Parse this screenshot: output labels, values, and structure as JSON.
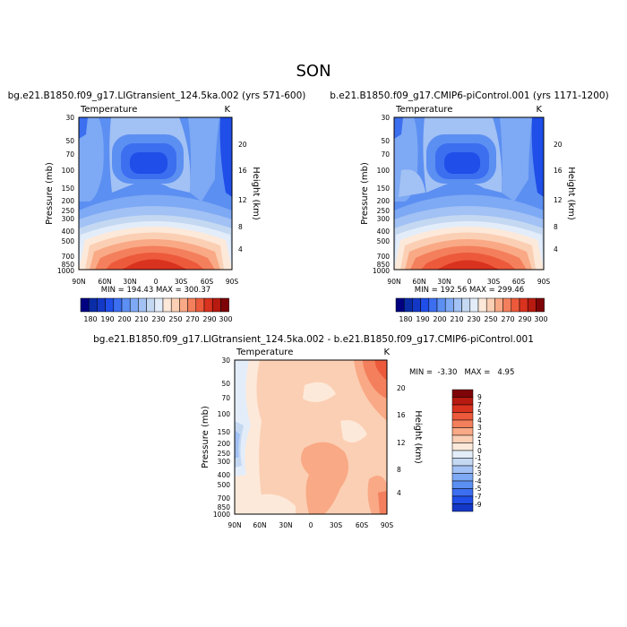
{
  "page_title": "SON",
  "chart_data": [
    {
      "type": "heatmap",
      "title": "bg.e21.B1850.f09_g17.LIGtransient_124.5ka.002 (yrs 571-600)",
      "subtitle": "Temperature",
      "units": "K",
      "ylabel": "Pressure (mb)",
      "y2label": "Height (km)",
      "x_ticks": [
        "90N",
        "60N",
        "30N",
        "0",
        "30S",
        "60S",
        "90S"
      ],
      "y_ticks": [
        "30",
        "50",
        "70",
        "100",
        "150",
        "200",
        "250",
        "300",
        "400",
        "500",
        "700",
        "850",
        "1000"
      ],
      "y2_ticks": [
        "20",
        "16",
        "12",
        "8",
        "4"
      ],
      "stats": "MIN = 194.43   MAX = 300.37",
      "min": 194.43,
      "max": 300.37,
      "colorbar": {
        "orientation": "horizontal",
        "labels": [
          "180",
          "190",
          "200",
          "210",
          "230",
          "250",
          "270",
          "290",
          "300"
        ],
        "colors": [
          "#000080",
          "#0a2ca6",
          "#1438c6",
          "#1f4ee8",
          "#3c6ef0",
          "#5c8ff2",
          "#7ea9f4",
          "#a2c1f4",
          "#c4d8f2",
          "#e3edfa",
          "#fde9d9",
          "#fbcfb4",
          "#f9a985",
          "#f47f5c",
          "#ec5a3b",
          "#d9321f",
          "#b71a10",
          "#7d0508"
        ]
      }
    },
    {
      "type": "heatmap",
      "title": "b.e21.B1850.f09_g17.CMIP6-piControl.001 (yrs 1171-1200)",
      "subtitle": "Temperature",
      "units": "K",
      "ylabel": "Pressure (mb)",
      "y2label": "Height (km)",
      "x_ticks": [
        "90N",
        "60N",
        "30N",
        "0",
        "30S",
        "60S",
        "90S"
      ],
      "y_ticks": [
        "30",
        "50",
        "70",
        "100",
        "150",
        "200",
        "250",
        "300",
        "400",
        "500",
        "700",
        "850",
        "1000"
      ],
      "y2_ticks": [
        "20",
        "16",
        "12",
        "8",
        "4"
      ],
      "stats": "MIN = 192.56   MAX = 299.46",
      "min": 192.56,
      "max": 299.46,
      "colorbar": {
        "orientation": "horizontal",
        "labels": [
          "180",
          "190",
          "200",
          "210",
          "230",
          "250",
          "270",
          "290",
          "300"
        ],
        "colors": [
          "#000080",
          "#0a2ca6",
          "#1438c6",
          "#1f4ee8",
          "#3c6ef0",
          "#5c8ff2",
          "#7ea9f4",
          "#a2c1f4",
          "#c4d8f2",
          "#e3edfa",
          "#fde9d9",
          "#fbcfb4",
          "#f9a985",
          "#f47f5c",
          "#ec5a3b",
          "#d9321f",
          "#b71a10",
          "#7d0508"
        ]
      }
    },
    {
      "type": "heatmap",
      "title": "bg.e21.B1850.f09_g17.LIGtransient_124.5ka.002 - b.e21.B1850.f09_g17.CMIP6-piControl.001",
      "subtitle": "Temperature",
      "units": "K",
      "ylabel": "Pressure (mb)",
      "y2label": "Height (km)",
      "x_ticks": [
        "90N",
        "60N",
        "30N",
        "0",
        "30S",
        "60S",
        "90S"
      ],
      "y_ticks": [
        "30",
        "50",
        "70",
        "100",
        "150",
        "200",
        "250",
        "300",
        "400",
        "500",
        "700",
        "850",
        "1000"
      ],
      "y2_ticks": [
        "20",
        "16",
        "12",
        "8",
        "4"
      ],
      "stats": "MIN =  -3.30   MAX =   4.95",
      "min": -3.3,
      "max": 4.95,
      "colorbar": {
        "orientation": "vertical",
        "labels": [
          "9",
          "7",
          "5",
          "4",
          "3",
          "2",
          "1",
          "0",
          "-1",
          "-2",
          "-3",
          "-4",
          "-5",
          "-7",
          "-9"
        ],
        "colors": [
          "#7d0508",
          "#b71a10",
          "#d9321f",
          "#ec5a3b",
          "#f47f5c",
          "#f9a985",
          "#fbcfb4",
          "#fde9d9",
          "#e3edfa",
          "#c4d8f2",
          "#a2c1f4",
          "#7ea9f4",
          "#5c8ff2",
          "#3c6ef0",
          "#1f4ee8",
          "#1438c6"
        ]
      }
    }
  ]
}
